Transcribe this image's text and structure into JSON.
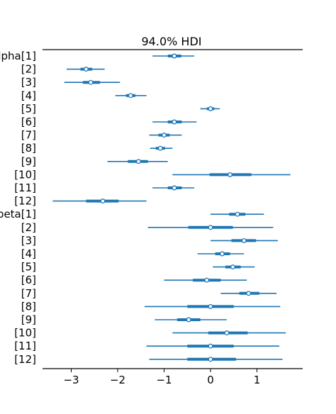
{
  "chart_data": {
    "type": "forest",
    "title": "94.0% HDI",
    "xlim": [
      -3.6,
      2.0
    ],
    "x_ticks": [
      -3,
      -2,
      -1,
      0,
      1
    ],
    "x_tick_labels": [
      "−3",
      "−2",
      "−1",
      "0",
      "1"
    ],
    "series_color": "#1f77b4",
    "rows": [
      {
        "label": "alpha[1]",
        "median": -0.78,
        "iqr": [
          -0.92,
          -0.63
        ],
        "hdi": [
          -1.25,
          -0.35
        ]
      },
      {
        "label": "[2]",
        "median": -2.68,
        "iqr": [
          -2.8,
          -2.55
        ],
        "hdi": [
          -3.1,
          -2.28
        ]
      },
      {
        "label": "[3]",
        "median": -2.58,
        "iqr": [
          -2.75,
          -2.38
        ],
        "hdi": [
          -3.15,
          -1.95
        ]
      },
      {
        "label": "[4]",
        "median": -1.72,
        "iqr": [
          -1.82,
          -1.62
        ],
        "hdi": [
          -2.05,
          -1.38
        ]
      },
      {
        "label": "[5]",
        "median": 0.0,
        "iqr": [
          -0.08,
          0.08
        ],
        "hdi": [
          -0.22,
          0.2
        ]
      },
      {
        "label": "[6]",
        "median": -0.78,
        "iqr": [
          -0.92,
          -0.62
        ],
        "hdi": [
          -1.25,
          -0.3
        ]
      },
      {
        "label": "[7]",
        "median": -1.0,
        "iqr": [
          -1.12,
          -0.88
        ],
        "hdi": [
          -1.32,
          -0.62
        ]
      },
      {
        "label": "[8]",
        "median": -1.08,
        "iqr": [
          -1.18,
          -0.98
        ],
        "hdi": [
          -1.3,
          -0.82
        ]
      },
      {
        "label": "[9]",
        "median": -1.55,
        "iqr": [
          -1.78,
          -1.35
        ],
        "hdi": [
          -2.22,
          -0.92
        ]
      },
      {
        "label": "[10]",
        "median": 0.42,
        "iqr": [
          -0.02,
          0.88
        ],
        "hdi": [
          -0.82,
          1.72
        ]
      },
      {
        "label": "[11]",
        "median": -0.78,
        "iqr": [
          -0.92,
          -0.62
        ],
        "hdi": [
          -1.25,
          -0.35
        ]
      },
      {
        "label": "[12]",
        "median": -2.32,
        "iqr": [
          -2.68,
          -1.98
        ],
        "hdi": [
          -3.4,
          -1.38
        ]
      },
      {
        "label": "beta[1]",
        "median": 0.58,
        "iqr": [
          0.4,
          0.75
        ],
        "hdi": [
          0.0,
          1.15
        ]
      },
      {
        "label": "[2]",
        "median": 0.0,
        "iqr": [
          -0.48,
          0.48
        ],
        "hdi": [
          -1.35,
          1.35
        ]
      },
      {
        "label": "[3]",
        "median": 0.72,
        "iqr": [
          0.45,
          0.98
        ],
        "hdi": [
          0.0,
          1.45
        ]
      },
      {
        "label": "[4]",
        "median": 0.25,
        "iqr": [
          0.1,
          0.42
        ],
        "hdi": [
          -0.28,
          0.72
        ]
      },
      {
        "label": "[5]",
        "median": 0.48,
        "iqr": [
          0.32,
          0.65
        ],
        "hdi": [
          0.05,
          0.95
        ]
      },
      {
        "label": "[6]",
        "median": -0.08,
        "iqr": [
          -0.38,
          0.22
        ],
        "hdi": [
          -1.0,
          0.78
        ]
      },
      {
        "label": "[7]",
        "median": 0.82,
        "iqr": [
          0.62,
          1.05
        ],
        "hdi": [
          0.22,
          1.42
        ]
      },
      {
        "label": "[8]",
        "median": 0.0,
        "iqr": [
          -0.5,
          0.5
        ],
        "hdi": [
          -1.42,
          1.5
        ]
      },
      {
        "label": "[9]",
        "median": -0.47,
        "iqr": [
          -0.72,
          -0.22
        ],
        "hdi": [
          -1.2,
          0.35
        ]
      },
      {
        "label": "[10]",
        "median": 0.35,
        "iqr": [
          -0.05,
          0.8
        ],
        "hdi": [
          -0.82,
          1.62
        ]
      },
      {
        "label": "[11]",
        "median": 0.0,
        "iqr": [
          -0.5,
          0.5
        ],
        "hdi": [
          -1.38,
          1.48
        ]
      },
      {
        "label": "[12]",
        "median": 0.0,
        "iqr": [
          -0.5,
          0.55
        ],
        "hdi": [
          -1.32,
          1.55
        ]
      }
    ]
  }
}
